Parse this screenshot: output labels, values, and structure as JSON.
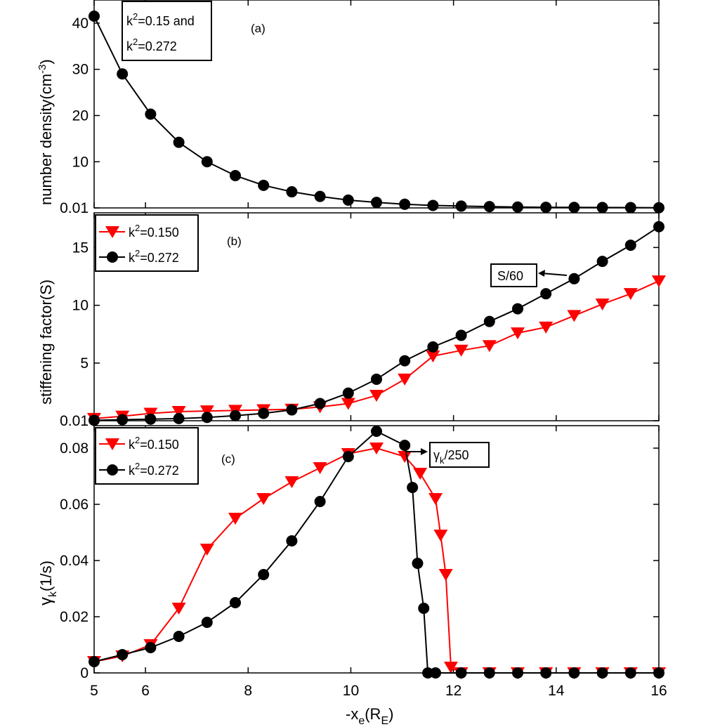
{
  "chart_data": [
    {
      "type": "line",
      "panel_label": "(a)",
      "ylabel": "number density(cm^-3)",
      "xlim": [
        5,
        16
      ],
      "ylim": [
        0.01,
        45
      ],
      "yticks": [
        0.01,
        10,
        20,
        30,
        40
      ],
      "ytick_labels": [
        "0.01",
        "10",
        "20",
        "30",
        "40"
      ],
      "legend_lines": [
        "k^2=0.15 and",
        "k^2=0.272"
      ],
      "series": [
        {
          "name": "number density",
          "color": "#000000",
          "marker": "circle",
          "x": [
            5,
            5.55,
            6.1,
            6.65,
            7.2,
            7.75,
            8.3,
            8.85,
            9.4,
            9.95,
            10.5,
            11.05,
            11.6,
            12.15,
            12.7,
            13.25,
            13.8,
            14.35,
            14.9,
            15.45,
            16
          ],
          "y": [
            41.5,
            29,
            20.3,
            14.2,
            10,
            7,
            4.9,
            3.5,
            2.5,
            1.7,
            1.2,
            0.8,
            0.55,
            0.4,
            0.3,
            0.2,
            0.15,
            0.12,
            0.1,
            0.08,
            0.05
          ]
        }
      ]
    },
    {
      "type": "line",
      "panel_label": "(b)",
      "ylabel": "stiffening factor(S)",
      "xlim": [
        5,
        16
      ],
      "ylim": [
        0.01,
        18
      ],
      "yticks": [
        0.01,
        5,
        10,
        15
      ],
      "ytick_labels": [
        "0.01",
        "5",
        "10",
        "15"
      ],
      "annotation": "S/60",
      "series": [
        {
          "name": "k^2=0.150",
          "color": "#ff0000",
          "marker": "triangle-down",
          "x": [
            5,
            5.55,
            6.1,
            6.65,
            7.2,
            7.75,
            8.3,
            8.85,
            9.4,
            9.95,
            10.5,
            11.05,
            11.6,
            12.15,
            12.7,
            13.25,
            13.8,
            14.35,
            14.9,
            15.45,
            16
          ],
          "y": [
            0.2,
            0.4,
            0.65,
            0.8,
            0.85,
            0.9,
            0.95,
            1.0,
            1.2,
            1.5,
            2.2,
            3.6,
            5.6,
            6.1,
            6.5,
            7.6,
            8.1,
            9.1,
            10.1,
            11.0,
            12.1
          ]
        },
        {
          "name": "k^2=0.272",
          "color": "#000000",
          "marker": "circle",
          "x": [
            5,
            5.55,
            6.1,
            6.65,
            7.2,
            7.75,
            8.3,
            8.85,
            9.4,
            9.95,
            10.5,
            11.05,
            11.6,
            12.15,
            12.7,
            13.25,
            13.8,
            14.35,
            14.9,
            15.45,
            16
          ],
          "y": [
            0.05,
            0.1,
            0.15,
            0.2,
            0.3,
            0.45,
            0.65,
            0.95,
            1.5,
            2.4,
            3.6,
            5.2,
            6.4,
            7.4,
            8.6,
            9.7,
            11.0,
            12.3,
            13.8,
            15.2,
            16.8
          ]
        }
      ]
    },
    {
      "type": "line",
      "panel_label": "(c)",
      "ylabel": "γk(1/s)",
      "xlabel": "-xe(RE)",
      "xlim": [
        5,
        16
      ],
      "ylim": [
        0,
        0.088
      ],
      "xticks": [
        5,
        6,
        8,
        10,
        12,
        14,
        16
      ],
      "xtick_labels": [
        "5",
        "6",
        "8",
        "10",
        "12",
        "14",
        "16"
      ],
      "yticks": [
        0,
        0.02,
        0.04,
        0.06,
        0.08
      ],
      "ytick_labels": [
        "0",
        "0.02",
        "0.04",
        "0.06",
        "0.08"
      ],
      "annotation": "γk/250",
      "series": [
        {
          "name": "k^2=0.150",
          "color": "#ff0000",
          "marker": "triangle-down",
          "x": [
            5,
            5.55,
            6.1,
            6.65,
            7.2,
            7.75,
            8.3,
            8.85,
            9.4,
            9.95,
            10.5,
            11.05,
            11.35,
            11.65,
            11.75,
            11.85,
            11.95,
            12.15,
            12.7,
            13.25,
            13.8,
            14.35,
            14.9,
            15.45,
            16
          ],
          "y": [
            0.004,
            0.006,
            0.01,
            0.023,
            0.044,
            0.055,
            0.062,
            0.068,
            0.073,
            0.078,
            0.08,
            0.077,
            0.071,
            0.062,
            0.049,
            0.035,
            0.002,
            0,
            0,
            0,
            0,
            0,
            0,
            0,
            0
          ]
        },
        {
          "name": "k^2=0.272",
          "color": "#000000",
          "marker": "circle",
          "x": [
            5,
            5.55,
            6.1,
            6.65,
            7.2,
            7.75,
            8.3,
            8.85,
            9.4,
            9.95,
            10.5,
            11.05,
            11.2,
            11.3,
            11.42,
            11.5,
            11.65,
            12.15,
            12.7,
            13.25,
            13.8,
            14.35,
            14.9,
            15.45,
            16
          ],
          "y": [
            0.004,
            0.0065,
            0.009,
            0.013,
            0.018,
            0.025,
            0.035,
            0.047,
            0.061,
            0.077,
            0.086,
            0.081,
            0.066,
            0.039,
            0.023,
            0,
            0,
            0,
            0,
            0,
            0,
            0,
            0,
            0,
            0
          ]
        }
      ]
    }
  ]
}
